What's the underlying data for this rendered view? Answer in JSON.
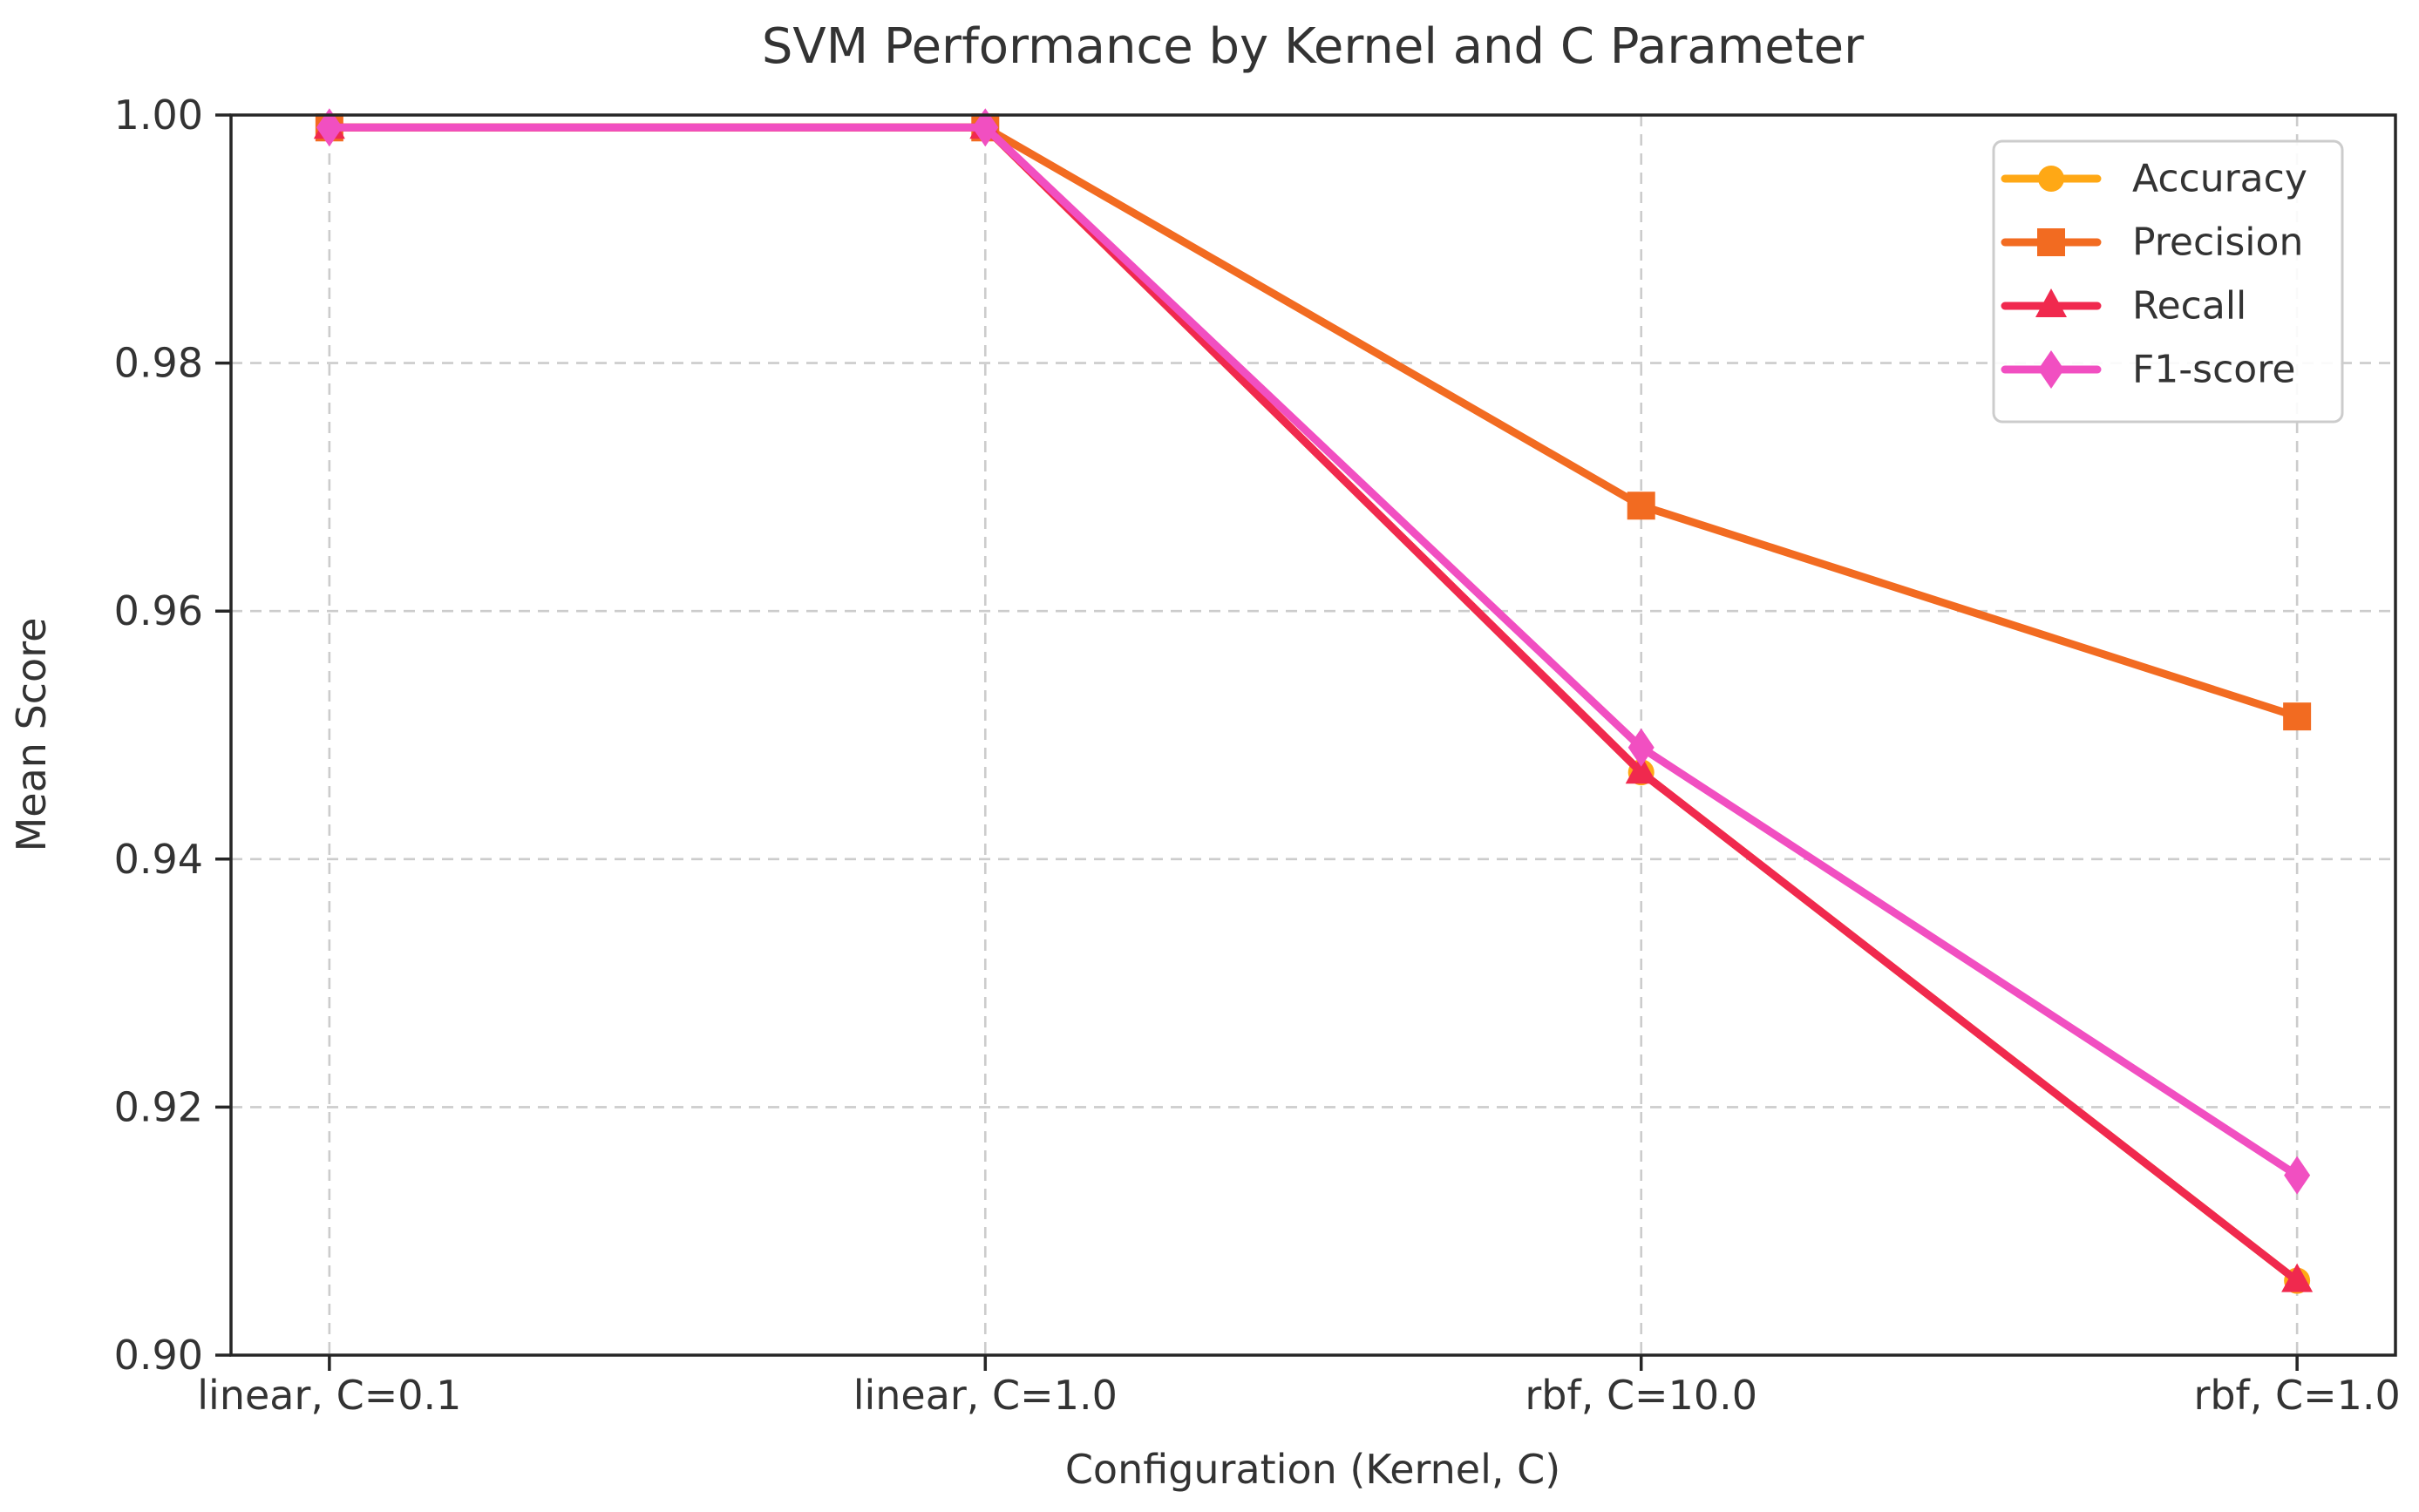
{
  "chart_data": {
    "type": "line",
    "title": "SVM Performance by Kernel and C Parameter",
    "xlabel": "Configuration (Kernel, C)",
    "ylabel": "Mean Score",
    "categories": [
      "linear, C=0.1",
      "linear, C=1.0",
      "rbf, C=10.0",
      "rbf, C=1.0"
    ],
    "series": [
      {
        "name": "Accuracy",
        "marker": "circle",
        "color": "#FFA815",
        "values": [
          0.999,
          0.999,
          0.947,
          0.906
        ]
      },
      {
        "name": "Precision",
        "marker": "square",
        "color": "#F26B21",
        "values": [
          0.999,
          0.999,
          0.9685,
          0.9515
        ]
      },
      {
        "name": "Recall",
        "marker": "triangle-up",
        "color": "#F0294E",
        "values": [
          0.999,
          0.999,
          0.947,
          0.906
        ]
      },
      {
        "name": "F1-score",
        "marker": "diamond",
        "color": "#F14FC1",
        "values": [
          0.999,
          0.999,
          0.949,
          0.9145
        ]
      }
    ],
    "ylim": [
      0.9,
      1.0
    ],
    "ytick_values": [
      1.0,
      0.98,
      0.96,
      0.94,
      0.92,
      0.9
    ],
    "ytick_labels": [
      "1.00",
      "0.98",
      "0.96",
      "0.94",
      "0.92",
      "0.90"
    ],
    "grid": true,
    "grid_style": "dashed",
    "legend_position": "upper right"
  },
  "style": {
    "background": "#ffffff",
    "grid_color": "#cccccc",
    "axis_color": "#262626",
    "text_color": "#333333",
    "legend_border": "#cccccc",
    "legend_fill": "#ffffff"
  }
}
